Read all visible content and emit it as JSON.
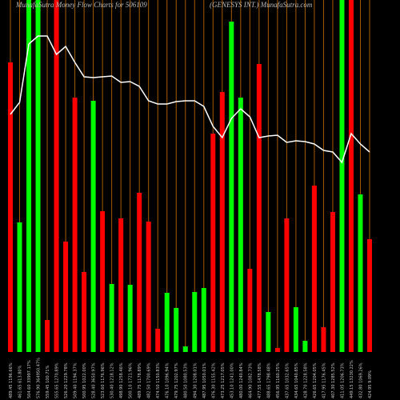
{
  "chart_data": {
    "type": "bar",
    "title": "MunafaSutra Money Flow  Charts for 506109",
    "subtitle": "(GENESYS INT.) MunafaSutra.com",
    "categories": [
      "489.45 1196.66%",
      "461.65 613.80%",
      "504.60 33997.17%",
      "576.90 364950.47%",
      "559.45 100.71%",
      "555.65 1270.89%",
      "526.20 1229.78%",
      "509.40 1194.37%",
      "500.95 1022.00%",
      "528.40 3650.97%",
      "523.60 1176.96%",
      "530.40 1218.12%",
      "498.90 1258.46%",
      "500.10 1721.96%",
      "489.75 1178.89%",
      "482.50 1700.69%",
      "474.50 1150.83%",
      "476.10 1096.94%",
      "479.75 1202.97%",
      "480.50 1080.53%",
      "494.30 1208.01%",
      "487.95 1050.01%",
      "476.30 1155.42%",
      "473.25 1217.05%",
      "453.10 1241.00%",
      "480.00 1240.84%",
      "464.90 1082.73%",
      "477.55 1478.58%",
      "488.65 1798.48%",
      "456.95 1160.25%",
      "437.65 1032.65%",
      "434.65 1040.85%",
      "428.70 1228.58%",
      "426.65 1204.05%",
      "417.95 1176.45%",
      "407.30 1285.52%",
      "411.05 1206.73%",
      "449.15 13230.22%",
      "432.80 1069.26%",
      "424.95 9.09%"
    ],
    "values": [
      362,
      162,
      440,
      440,
      40,
      440,
      138,
      318,
      100,
      314,
      176,
      85,
      167,
      84,
      199,
      163,
      29,
      74,
      55,
      7,
      75,
      80,
      273,
      325,
      413,
      318,
      104,
      360,
      50,
      5,
      167,
      56,
      14,
      208,
      31,
      175,
      440,
      440,
      197,
      141
    ],
    "colors": [
      "#ff0000",
      "#00ff00",
      "#00ff00",
      "#00ff00",
      "#ff0000",
      "#ff0000",
      "#ff0000",
      "#ff0000",
      "#ff0000",
      "#00ff00",
      "#ff0000",
      "#00ff00",
      "#ff0000",
      "#00ff00",
      "#ff0000",
      "#ff0000",
      "#ff0000",
      "#00ff00",
      "#00ff00",
      "#00ff00",
      "#00ff00",
      "#00ff00",
      "#ff0000",
      "#ff0000",
      "#00ff00",
      "#00ff00",
      "#ff0000",
      "#ff0000",
      "#00ff00",
      "#ff0000",
      "#ff0000",
      "#00ff00",
      "#00ff00",
      "#ff0000",
      "#ff0000",
      "#ff0000",
      "#00ff00",
      "#ff0000",
      "#00ff00",
      "#ff0000"
    ],
    "line": {
      "color": "#ffffff",
      "values": [
        297,
        312,
        385,
        395,
        395,
        372,
        382,
        362,
        344,
        343,
        344,
        345,
        337,
        338,
        332,
        314,
        310,
        310,
        313,
        314,
        314,
        307,
        282,
        268,
        292,
        304,
        294,
        268,
        270,
        271,
        262,
        264,
        263,
        260,
        252,
        250,
        237,
        273,
        260,
        250
      ]
    },
    "ylim": [
      0,
      440
    ],
    "grid": true,
    "grid_color": "#a85a00"
  }
}
